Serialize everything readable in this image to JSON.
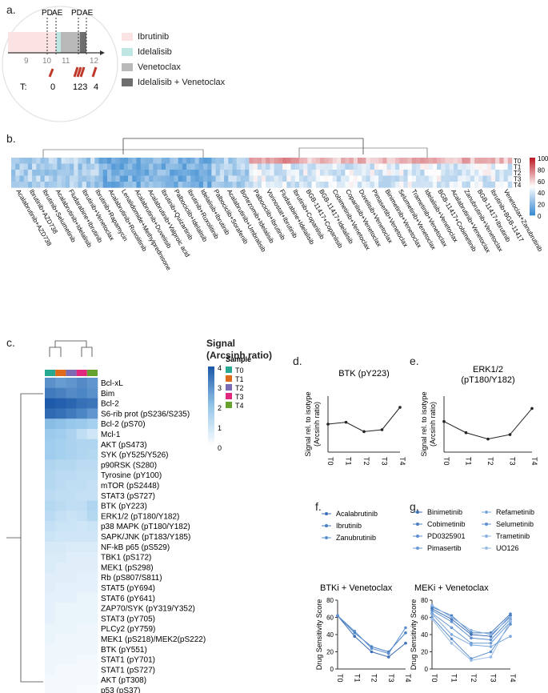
{
  "panels": {
    "a": "a.",
    "b": "b.",
    "c": "c.",
    "d": "d.",
    "e": "e.",
    "f": "f.",
    "g": "g."
  },
  "timeline": {
    "events_top": [
      "PD",
      "AE",
      "PD",
      "AE"
    ],
    "ticks": [
      "9",
      "10",
      "11",
      "12"
    ],
    "t_label": "T:",
    "t_points": [
      "0",
      "123",
      "4"
    ],
    "legend": [
      {
        "label": "Ibrutinib",
        "color": "#fbe3e3"
      },
      {
        "label": "Idelalisib",
        "color": "#bfe6e3"
      },
      {
        "label": "Venetoclax",
        "color": "#b9b9b9"
      },
      {
        "label": "Idelalisib + Venetoclax",
        "color": "#6e6e6e"
      }
    ]
  },
  "heatmap_b": {
    "rows": [
      "T0",
      "T1",
      "T2",
      "T3",
      "T4"
    ],
    "scale_ticks": [
      "100",
      "80",
      "60",
      "40",
      "20",
      "0"
    ],
    "drugs": [
      "Acalabrutinib+AZD738",
      "Ibrutinib+AZD738",
      "Ibrutinib+Selumetinib",
      "Acalabrutinib+Idelalisib",
      "Fludarabine+Ibrutinib",
      "Ibrutinib+Venetoclax",
      "Ibrutinib+Rapamycin",
      "Acalabrutinib+Ruxolitinib",
      "Lenalidomide+Methylprednisone",
      "Acalabrutinib+Duvelisib",
      "Acalabrutinib+Valproic acid",
      "Ibrutinib+Quizartinib",
      "Palbociclib+Idelalisib",
      "Ibrutinib+Ruxolitinib",
      "Idelalisib+Ibrutinib",
      "Palbociclib+Sorafenib",
      "Acalabrutinib+Umbralisib",
      "Bortezomib+Idelalisib",
      "Palbociclib+Ibrutinib",
      "Vorinostat+Ibrutinib",
      "Fludarabine+Idelalisib",
      "Ibrutinib+Copanlisib",
      "BGB-11417+Copanlisib",
      "BGB-11417+Idelalisib",
      "Cobimetinib+Venetoclax",
      "Copanlisib+Venetoclax",
      "Duvelisib+Venetoclax",
      "Pimasertib+Venetoclax",
      "Binimetinib+Venetoclax",
      "Selumetinib+Venetoclax",
      "Trametinib+Venetoclax",
      "Idelalisib+Venetoclax",
      "BGB-11417+Cobimetinib",
      "Acalabrutinib+Venetoclax",
      "Zanubrutinib+Venetoclax",
      "BGB-11417+Ibrutinib",
      "Ibrutinib+BGB-11417",
      "Venetoclax+Zanubrutinib"
    ]
  },
  "panel_c": {
    "title": "Signal",
    "subtitle": "(Arcsinh ratio)",
    "scale_ticks": [
      "4",
      "3",
      "2",
      "1",
      "0"
    ],
    "sample_title": "Sample",
    "samples": [
      {
        "label": "T0",
        "color": "#26a891"
      },
      {
        "label": "T1",
        "color": "#e06a1b"
      },
      {
        "label": "T2",
        "color": "#7b6bb5"
      },
      {
        "label": "T3",
        "color": "#e0287e"
      },
      {
        "label": "T4",
        "color": "#66a32e"
      }
    ],
    "rows": [
      "Bcl-xL",
      "Bim",
      "Bcl-2",
      "S6-rib prot (pS236/S235)",
      "Bcl-2 (pS70)",
      "Mcl-1",
      "AKT (pS473)",
      "SYK (pY525/Y526)",
      "p90RSK (S280)",
      "Tyrosine (pY100)",
      "mTOR (pS2448)",
      "STAT3 (pS727)",
      "BTK (pY223)",
      "ERK1/2 (pT180/Y182)",
      "p38 MAPK (pT180/Y182)",
      "SAPK/JNK (pT183/Y185)",
      "NF-kB p65 (pS529)",
      "TBK1 (pS172)",
      "MEK1 (pS298)",
      "Rb (pS807/S811)",
      "STAT5 (pY694)",
      "STAT6 (pY641)",
      "ZAP70/SYK (pY319/Y352)",
      "STAT3 (pY705)",
      "PLCy2 (pY759)",
      "MEK1 (pS218)/MEK2(pS222)",
      "BTK (pY551)",
      "STAT1 (pY701)",
      "STAT1 (pS727)",
      "AKT (pT308)",
      "p53 (pS37)"
    ],
    "values": [
      [
        3.0,
        2.8,
        2.9,
        3.1,
        2.9
      ],
      [
        3.4,
        3.3,
        3.1,
        3.2,
        3.0
      ],
      [
        4.0,
        3.9,
        3.8,
        3.6,
        3.5
      ],
      [
        3.7,
        3.6,
        3.4,
        3.2,
        2.9
      ],
      [
        2.2,
        2.1,
        2.0,
        1.9,
        1.7
      ],
      [
        1.9,
        1.8,
        1.6,
        1.2,
        0.9
      ],
      [
        1.8,
        1.7,
        1.6,
        1.5,
        1.5
      ],
      [
        1.8,
        1.7,
        1.6,
        1.5,
        1.4
      ],
      [
        1.5,
        1.4,
        1.4,
        1.3,
        1.3
      ],
      [
        1.4,
        1.3,
        1.3,
        1.2,
        1.2
      ],
      [
        1.4,
        1.3,
        1.2,
        1.2,
        1.1
      ],
      [
        1.3,
        1.2,
        1.2,
        1.1,
        1.1
      ],
      [
        1.4,
        1.3,
        1.2,
        1.2,
        1.5
      ],
      [
        1.3,
        1.1,
        1.0,
        1.1,
        1.4
      ],
      [
        1.1,
        1.0,
        1.0,
        0.9,
        1.0
      ],
      [
        1.0,
        0.9,
        0.9,
        0.9,
        0.9
      ],
      [
        0.8,
        0.8,
        0.7,
        0.7,
        0.7
      ],
      [
        0.7,
        0.7,
        0.6,
        0.6,
        0.6
      ],
      [
        0.7,
        0.6,
        0.6,
        0.6,
        0.6
      ],
      [
        0.6,
        0.6,
        0.6,
        0.5,
        0.5
      ],
      [
        0.6,
        0.5,
        0.5,
        0.5,
        0.5
      ],
      [
        0.5,
        0.5,
        0.5,
        0.4,
        0.4
      ],
      [
        0.5,
        0.4,
        0.4,
        0.4,
        0.4
      ],
      [
        0.5,
        0.4,
        0.4,
        0.4,
        0.4
      ],
      [
        0.4,
        0.4,
        0.4,
        0.3,
        0.3
      ],
      [
        0.4,
        0.3,
        0.3,
        0.3,
        0.3
      ],
      [
        0.3,
        0.3,
        0.3,
        0.3,
        0.3
      ],
      [
        0.3,
        0.3,
        0.3,
        0.2,
        0.2
      ],
      [
        0.3,
        0.2,
        0.2,
        0.2,
        0.2
      ],
      [
        0.2,
        0.2,
        0.2,
        0.2,
        0.2
      ],
      [
        0.2,
        0.2,
        0.2,
        0.1,
        0.1
      ]
    ]
  },
  "chart_data": [
    {
      "type": "line",
      "title": "BTK (pY223)",
      "ylabel": "Signal rel. to isotype (Arcsinh ratio)",
      "categories": [
        "T0",
        "T1",
        "T2",
        "T3",
        "T4"
      ],
      "values": [
        0.75,
        0.8,
        0.55,
        0.6,
        1.2
      ],
      "ylim": [
        0,
        1.5
      ]
    },
    {
      "type": "line",
      "title": "ERK1/2",
      "subtitle": "(pT180/Y182)",
      "ylabel": "Signal rel. to isotype (Arcsinh ratio)",
      "categories": [
        "T0",
        "T1",
        "T2",
        "T3",
        "T4"
      ],
      "values": [
        0.82,
        0.52,
        0.35,
        0.47,
        1.17
      ],
      "ylim": [
        0,
        1.5
      ]
    },
    {
      "type": "line",
      "title": "BTKi + Venetoclax",
      "ylabel": "Drug Sensitivity Score",
      "categories": [
        "T0",
        "T1",
        "T2",
        "T3",
        "T4"
      ],
      "ylim": [
        0,
        80
      ],
      "yticks": [
        "0",
        "20",
        "40",
        "60",
        "80"
      ],
      "series": [
        {
          "name": "Acalabrutinib",
          "values": [
            62,
            38,
            20,
            14,
            30
          ]
        },
        {
          "name": "Ibrutinib",
          "values": [
            62,
            42,
            26,
            20,
            42
          ]
        },
        {
          "name": "Zanubrutinib",
          "values": [
            62,
            44,
            24,
            18,
            48
          ]
        }
      ]
    },
    {
      "type": "line",
      "title": "MEKi + Venetoclax",
      "ylabel": "Drug Sensitivity Score",
      "categories": [
        "T0",
        "T1",
        "T2",
        "T3",
        "T4"
      ],
      "ylim": [
        0,
        80
      ],
      "yticks": [
        "0",
        "20",
        "40",
        "60",
        "80"
      ],
      "series": [
        {
          "name": "Binimetinib",
          "values": [
            70,
            58,
            40,
            38,
            62
          ]
        },
        {
          "name": "Cobimetinib",
          "values": [
            72,
            62,
            42,
            42,
            64
          ]
        },
        {
          "name": "PD0325901",
          "values": [
            68,
            55,
            36,
            34,
            58
          ]
        },
        {
          "name": "Pimasertib",
          "values": [
            65,
            48,
            30,
            30,
            55
          ]
        },
        {
          "name": "Refametinib",
          "values": [
            64,
            40,
            28,
            26,
            38
          ]
        },
        {
          "name": "Selumetinib",
          "values": [
            60,
            35,
            12,
            20,
            52
          ]
        },
        {
          "name": "Trametinib",
          "values": [
            74,
            60,
            45,
            40,
            60
          ]
        },
        {
          "name": "UO126",
          "values": [
            58,
            30,
            10,
            14,
            56
          ]
        }
      ]
    }
  ]
}
